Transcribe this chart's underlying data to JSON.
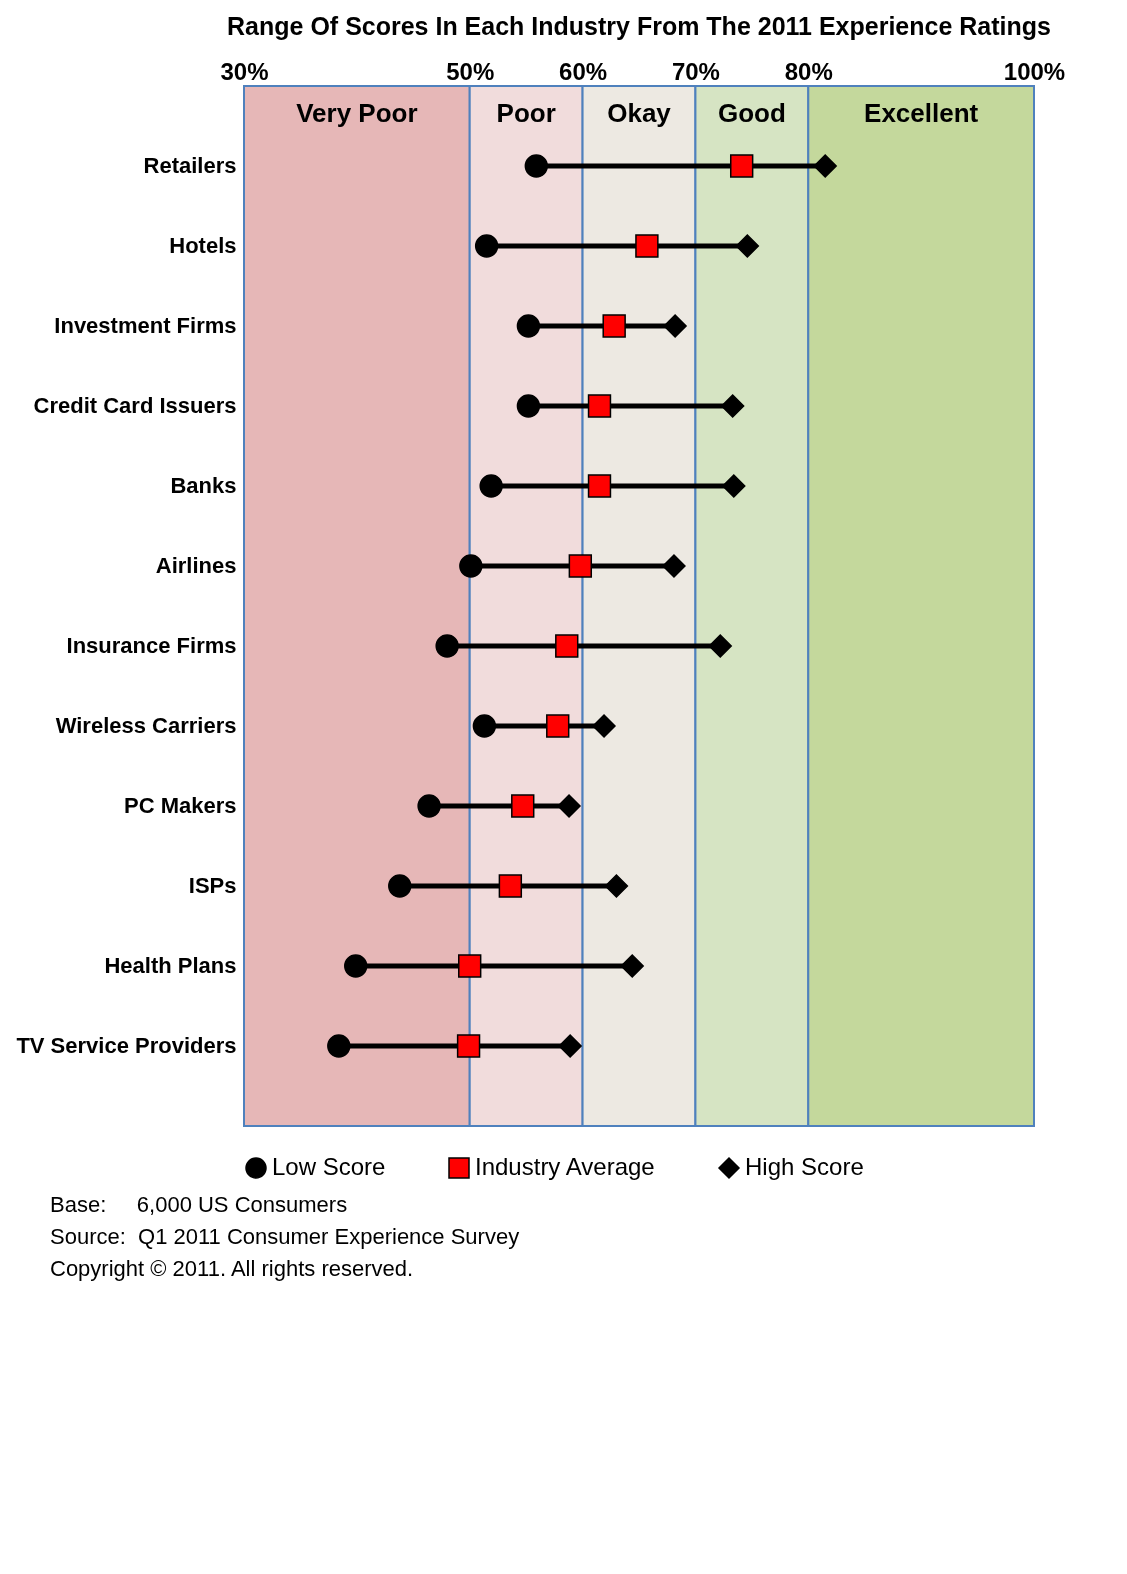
{
  "chart_data": {
    "type": "scatter",
    "orientation": "horizontal",
    "title": "Range Of Scores In Each Industry From The 2011 Experience Ratings",
    "categories": [
      "Retailers",
      "Hotels",
      "Investment Firms",
      "Credit Card Issuers",
      "Banks",
      "Airlines",
      "Insurance Firms",
      "Wireless Carriers",
      "PC Makers",
      "ISPs",
      "Health Plans",
      "TV Service Providers"
    ],
    "series": [
      {
        "name": "Low Score",
        "color": "#000000",
        "marker": "circle",
        "values": [
          55.9,
          51.5,
          55.2,
          55.2,
          51.9,
          50.1,
          48.0,
          51.3,
          46.4,
          43.8,
          39.9,
          38.4
        ]
      },
      {
        "name": "Industry Average",
        "color": "#ff0000",
        "marker": "square",
        "values": [
          74.1,
          65.7,
          62.8,
          61.5,
          61.5,
          59.8,
          58.6,
          57.8,
          54.7,
          53.6,
          50.0,
          49.9
        ]
      },
      {
        "name": "High Score",
        "color": "#000000",
        "marker": "diamond",
        "values": [
          81.5,
          74.6,
          68.2,
          73.3,
          73.4,
          68.1,
          72.2,
          61.9,
          58.8,
          63.0,
          64.4,
          58.9
        ]
      }
    ],
    "xlim": [
      30,
      100
    ],
    "xticks": [
      {
        "value": 30,
        "label": "30%"
      },
      {
        "value": 50,
        "label": "50%"
      },
      {
        "value": 60,
        "label": "60%"
      },
      {
        "value": 70,
        "label": "70%"
      },
      {
        "value": 80,
        "label": "80%"
      },
      {
        "value": 100,
        "label": "100%"
      }
    ],
    "bands": [
      {
        "axis": "x",
        "from": 30,
        "to": 50,
        "label": "Very Poor",
        "color": "#e6b7b7"
      },
      {
        "axis": "x",
        "from": 50,
        "to": 60,
        "label": "Poor",
        "color": "#f1dcdc"
      },
      {
        "axis": "x",
        "from": 60,
        "to": 70,
        "label": "Okay",
        "color": "#ede9e2"
      },
      {
        "axis": "x",
        "from": 70,
        "to": 80,
        "label": "Good",
        "color": "#d6e4c3"
      },
      {
        "axis": "x",
        "from": 80,
        "to": 100,
        "label": "Excellent",
        "color": "#c4d89c"
      }
    ],
    "legend": "bottom",
    "annotations": [
      "Base:     6,000 US Consumers",
      "Source:  Q1 2011 Consumer Experience Survey",
      "Copyright © 2011. All rights reserved."
    ]
  }
}
